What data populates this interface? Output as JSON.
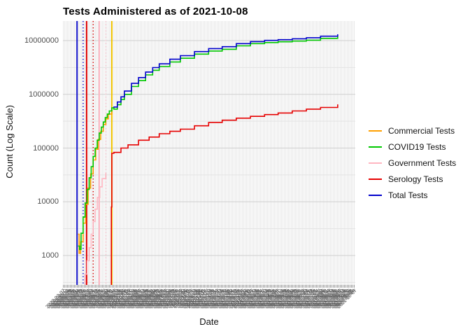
{
  "title": "Tests Administered as of 2021-10-08",
  "axes": {
    "x_label": "Date",
    "y_label": "Count (Log Scale)"
  },
  "chart_data": {
    "type": "line",
    "title": "Tests Administered as of 2021-10-08",
    "xlabel": "Date",
    "ylabel": "Count (Log Scale)",
    "y_scale": "log10",
    "ylim_log10": [
      2.453,
      7.365
    ],
    "y_ticks": [
      1000,
      10000,
      100000,
      1000000,
      10000000
    ],
    "y_tick_labels": [
      "1000",
      "10000",
      "100000",
      "1000000",
      "10000000"
    ],
    "y_minor_ticks": [
      316,
      3160,
      31600,
      316000,
      3160000
    ],
    "grid": true,
    "legend_position": "right",
    "x_axis": {
      "first_date": "2020-03-07",
      "last_date": "2021-10-08",
      "total_days": 580,
      "tick_step_days": 3,
      "label_angle_deg": 45
    },
    "event_vlines": [
      {
        "day": 28,
        "color": "#1414cc",
        "style": "solid",
        "width": 2
      },
      {
        "day": 40,
        "color": "#2222cc",
        "style": "dotted",
        "width": 1.6
      },
      {
        "day": 47,
        "color": "#e00000",
        "style": "solid",
        "width": 2
      },
      {
        "day": 60,
        "color": "#dd2222",
        "style": "dotted",
        "width": 1.6
      },
      {
        "day": 72,
        "color": "#ffb6c1",
        "style": "solid",
        "width": 2
      },
      {
        "day": 85,
        "color": "#ffd0db",
        "style": "dotted",
        "width": 1.6
      },
      {
        "day": 97,
        "color": "#f2c500",
        "style": "solid",
        "width": 2
      }
    ],
    "series": [
      {
        "name": "Government Tests",
        "color": "#ffb6c1",
        "points": [
          [
            40,
            250
          ],
          [
            44,
            450
          ],
          [
            48,
            800
          ],
          [
            52,
            1400
          ],
          [
            56,
            2500
          ],
          [
            60,
            4300
          ],
          [
            64,
            7300
          ],
          [
            68,
            12000
          ],
          [
            73,
            19000
          ],
          [
            78,
            27000
          ],
          [
            85,
            34000
          ]
        ]
      },
      {
        "name": "Commercial Tests",
        "color": "#ffa000",
        "points": [
          [
            30,
            2500
          ],
          [
            32,
            1100
          ],
          [
            35,
            1800
          ],
          [
            40,
            4000
          ],
          [
            45,
            9000
          ],
          [
            50,
            18000
          ],
          [
            55,
            33000
          ],
          [
            60,
            60000
          ],
          [
            65,
            95000
          ],
          [
            70,
            145000
          ],
          [
            75,
            205000
          ],
          [
            80,
            275000
          ],
          [
            85,
            350000
          ],
          [
            90,
            430000
          ],
          [
            97,
            510000
          ]
        ]
      },
      {
        "name": "COVID19 Tests",
        "color": "#00c800",
        "points": [
          [
            30,
            1500
          ],
          [
            33,
            1300
          ],
          [
            36,
            2600
          ],
          [
            40,
            5200
          ],
          [
            44,
            9500
          ],
          [
            48,
            17000
          ],
          [
            52,
            28000
          ],
          [
            56,
            45000
          ],
          [
            60,
            70000
          ],
          [
            64,
            100000
          ],
          [
            68,
            140000
          ],
          [
            72,
            190000
          ],
          [
            76,
            245000
          ],
          [
            80,
            305000
          ],
          [
            84,
            370000
          ],
          [
            88,
            430000
          ],
          [
            92,
            490000
          ],
          [
            97,
            560000
          ],
          [
            101,
            530000
          ],
          [
            108,
            640000
          ],
          [
            115,
            800000
          ],
          [
            122,
            1000000
          ],
          [
            136,
            1400000
          ],
          [
            150,
            1800000
          ],
          [
            164,
            2300000
          ],
          [
            178,
            2800000
          ],
          [
            191,
            3300000
          ],
          [
            212,
            4000000
          ],
          [
            233,
            4700000
          ],
          [
            261,
            5600000
          ],
          [
            289,
            6400000
          ],
          [
            316,
            6900000
          ],
          [
            344,
            8000000
          ],
          [
            372,
            8800000
          ],
          [
            400,
            9200000
          ],
          [
            427,
            9500000
          ],
          [
            455,
            9800000
          ],
          [
            483,
            10200000
          ],
          [
            511,
            11000000
          ],
          [
            545,
            12000000
          ]
        ]
      },
      {
        "name": "Total Tests",
        "color": "#0000cc",
        "points": [
          [
            100,
            580000
          ],
          [
            108,
            720000
          ],
          [
            115,
            900000
          ],
          [
            122,
            1150000
          ],
          [
            136,
            1600000
          ],
          [
            150,
            2050000
          ],
          [
            164,
            2600000
          ],
          [
            178,
            3150000
          ],
          [
            191,
            3700000
          ],
          [
            212,
            4500000
          ],
          [
            233,
            5250000
          ],
          [
            261,
            6250000
          ],
          [
            289,
            7100000
          ],
          [
            316,
            7700000
          ],
          [
            344,
            8800000
          ],
          [
            372,
            9600000
          ],
          [
            400,
            10100000
          ],
          [
            427,
            10400000
          ],
          [
            455,
            10800000
          ],
          [
            483,
            11300000
          ],
          [
            511,
            12100000
          ],
          [
            545,
            13100000
          ]
        ]
      },
      {
        "name": "Serology Tests",
        "color": "#e60000",
        "points": [
          [
            96,
            100
          ],
          [
            96,
            8000
          ],
          [
            97,
            80000
          ],
          [
            101,
            83000
          ],
          [
            115,
            100000
          ],
          [
            129,
            115000
          ],
          [
            150,
            140000
          ],
          [
            171,
            160000
          ],
          [
            191,
            185000
          ],
          [
            212,
            205000
          ],
          [
            233,
            225000
          ],
          [
            261,
            260000
          ],
          [
            289,
            300000
          ],
          [
            316,
            330000
          ],
          [
            344,
            360000
          ],
          [
            372,
            390000
          ],
          [
            400,
            420000
          ],
          [
            427,
            450000
          ],
          [
            455,
            490000
          ],
          [
            483,
            530000
          ],
          [
            511,
            570000
          ],
          [
            545,
            650000
          ]
        ]
      }
    ],
    "legend": {
      "entries": [
        {
          "label": "Commercial Tests",
          "color": "#ffa000"
        },
        {
          "label": "COVID19 Tests",
          "color": "#00c800"
        },
        {
          "label": "Government Tests",
          "color": "#ffb6c1"
        },
        {
          "label": "Serology Tests",
          "color": "#e60000"
        },
        {
          "label": "Total Tests",
          "color": "#0000cc"
        }
      ]
    }
  },
  "style_colors": {
    "grid_major": "#cfcfcf",
    "grid_minor": "#e3e3e3",
    "tick_text": "#4d4d4d",
    "axis_text": "#111111"
  }
}
